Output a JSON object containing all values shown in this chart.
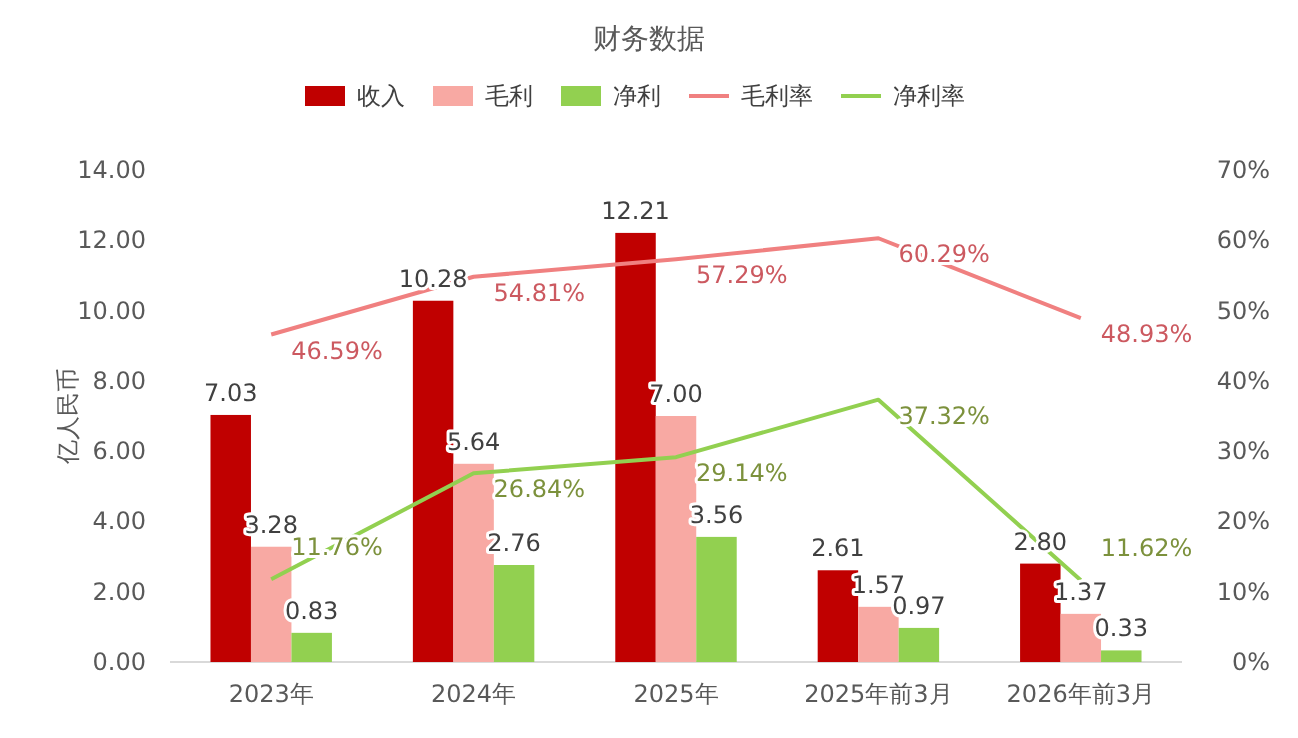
{
  "chart_data": {
    "type": "bar",
    "title": "财务数据",
    "ylabel": "亿人民币",
    "legend": "top",
    "categories": [
      "2023年",
      "2024年",
      "2025年",
      "2025年前3月",
      "2026年前3月"
    ],
    "ylim": [
      0,
      14
    ],
    "yticks": [
      {
        "value": 0,
        "label": "0.00"
      },
      {
        "value": 2,
        "label": "2.00"
      },
      {
        "value": 4,
        "label": "4.00"
      },
      {
        "value": 6,
        "label": "6.00"
      },
      {
        "value": 8,
        "label": "8.00"
      },
      {
        "value": 10,
        "label": "10.00"
      },
      {
        "value": 12,
        "label": "12.00"
      },
      {
        "value": 14,
        "label": "14.00"
      }
    ],
    "y2lim": [
      0,
      70
    ],
    "y2ticks": [
      {
        "value": 0,
        "label": "0%"
      },
      {
        "value": 10,
        "label": "10%"
      },
      {
        "value": 20,
        "label": "20%"
      },
      {
        "value": 30,
        "label": "30%"
      },
      {
        "value": 40,
        "label": "40%"
      },
      {
        "value": 50,
        "label": "50%"
      },
      {
        "value": 60,
        "label": "60%"
      },
      {
        "value": 70,
        "label": "70%"
      }
    ],
    "series": [
      {
        "name": "收入",
        "color": "#c00000",
        "values": [
          7.03,
          10.28,
          12.21,
          2.61,
          2.8
        ],
        "value_labels": [
          "7.03",
          "10.28",
          "12.21",
          "2.61",
          "2.80"
        ]
      },
      {
        "name": "毛利",
        "color": "#f8a9a3",
        "values": [
          3.28,
          5.64,
          7.0,
          1.57,
          1.37
        ],
        "value_labels": [
          "3.28",
          "5.64",
          "7.00",
          "1.57",
          "1.37"
        ]
      },
      {
        "name": "净利",
        "color": "#92d050",
        "values": [
          0.83,
          2.76,
          3.56,
          0.97,
          0.33
        ],
        "value_labels": [
          "0.83",
          "2.76",
          "3.56",
          "0.97",
          "0.33"
        ]
      },
      {
        "name": "毛利率",
        "type": "line",
        "axis": "y2",
        "color": "#f08080",
        "values": [
          46.59,
          54.81,
          57.29,
          60.29,
          48.93
        ],
        "value_labels": [
          "46.59%",
          "54.81%",
          "57.29%",
          "60.29%",
          "48.93%"
        ]
      },
      {
        "name": "净利率",
        "type": "line",
        "axis": "y2",
        "color": "#92d050",
        "values": [
          11.76,
          26.84,
          29.14,
          37.32,
          11.62
        ],
        "value_labels": [
          "11.76%",
          "26.84%",
          "29.14%",
          "37.32%",
          "11.62%"
        ]
      }
    ]
  }
}
